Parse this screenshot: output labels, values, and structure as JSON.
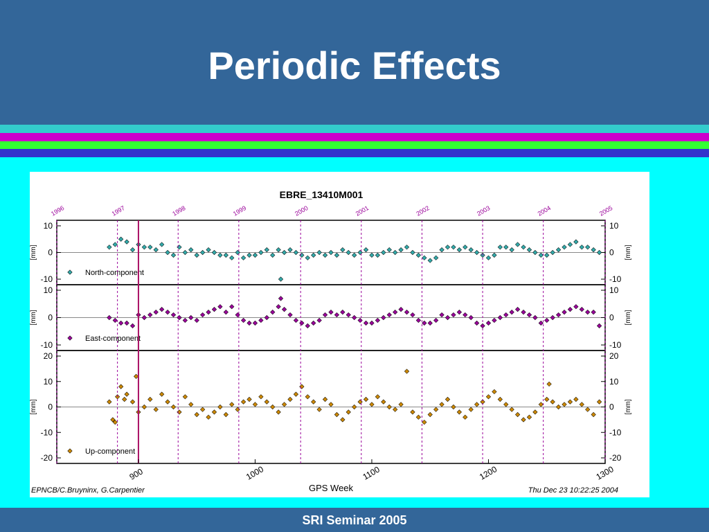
{
  "slide": {
    "title": "Periodic Effects",
    "footer": "SRI Seminar 2005",
    "colors": {
      "header": "#336699",
      "background": "#00ffff",
      "stripe_cyan": "#33cccc",
      "stripe_magenta": "#cc00cc",
      "stripe_green": "#33ff33",
      "stripe_blue": "#3333cc"
    }
  },
  "chart_data": {
    "type": "scatter",
    "title": "EBRE_13410M001",
    "xlabel": "GPS Week",
    "credit": "EPNCB/C.Bruyninx, G.Carpentier",
    "timestamp": "Thu Dec 23 10:22:25 2004",
    "xlim": [
      830,
      1300
    ],
    "x_ticks": [
      "900",
      "1000",
      "1100",
      "1200",
      "1300"
    ],
    "year_labels": [
      {
        "label": "1996",
        "week": 830
      },
      {
        "label": "1997",
        "week": 882
      },
      {
        "label": "1998",
        "week": 934
      },
      {
        "label": "1999",
        "week": 986
      },
      {
        "label": "2000",
        "week": 1039
      },
      {
        "label": "2001",
        "week": 1091
      },
      {
        "label": "2002",
        "week": 1143
      },
      {
        "label": "2003",
        "week": 1195
      },
      {
        "label": "2004",
        "week": 1247
      },
      {
        "label": "2005",
        "week": 1300
      }
    ],
    "event_line_week": 900,
    "panels": [
      {
        "name": "North-component",
        "ylabel": "[mm]",
        "ylim": [
          -10,
          10
        ],
        "y_ticks": [
          "10",
          "0",
          "-10"
        ],
        "color": "#33aaaa",
        "points": [
          [
            875,
            2
          ],
          [
            880,
            3
          ],
          [
            885,
            5
          ],
          [
            890,
            4
          ],
          [
            895,
            1
          ],
          [
            900,
            3
          ],
          [
            905,
            2
          ],
          [
            910,
            2
          ],
          [
            915,
            1
          ],
          [
            920,
            3
          ],
          [
            925,
            0
          ],
          [
            930,
            -1
          ],
          [
            935,
            2
          ],
          [
            940,
            0
          ],
          [
            945,
            1
          ],
          [
            950,
            -1
          ],
          [
            955,
            0
          ],
          [
            960,
            1
          ],
          [
            965,
            0
          ],
          [
            970,
            -1
          ],
          [
            975,
            -1
          ],
          [
            980,
            -2
          ],
          [
            985,
            0
          ],
          [
            990,
            -2
          ],
          [
            995,
            -1
          ],
          [
            1000,
            -1
          ],
          [
            1005,
            0
          ],
          [
            1010,
            1
          ],
          [
            1015,
            -1
          ],
          [
            1020,
            1
          ],
          [
            1025,
            0
          ],
          [
            1030,
            1
          ],
          [
            1035,
            0
          ],
          [
            1040,
            -1
          ],
          [
            1045,
            -2
          ],
          [
            1050,
            -1
          ],
          [
            1055,
            0
          ],
          [
            1060,
            -1
          ],
          [
            1065,
            0
          ],
          [
            1070,
            -1
          ],
          [
            1075,
            1
          ],
          [
            1080,
            0
          ],
          [
            1085,
            -1
          ],
          [
            1090,
            0
          ],
          [
            1095,
            1
          ],
          [
            1100,
            -1
          ],
          [
            1105,
            -1
          ],
          [
            1110,
            0
          ],
          [
            1115,
            1
          ],
          [
            1120,
            0
          ],
          [
            1125,
            1
          ],
          [
            1130,
            2
          ],
          [
            1135,
            0
          ],
          [
            1140,
            -1
          ],
          [
            1145,
            -2
          ],
          [
            1150,
            -3
          ],
          [
            1155,
            -2
          ],
          [
            1160,
            1
          ],
          [
            1165,
            2
          ],
          [
            1170,
            2
          ],
          [
            1175,
            1
          ],
          [
            1180,
            2
          ],
          [
            1185,
            1
          ],
          [
            1190,
            0
          ],
          [
            1195,
            -1
          ],
          [
            1200,
            -2
          ],
          [
            1205,
            -1
          ],
          [
            1210,
            2
          ],
          [
            1215,
            2
          ],
          [
            1220,
            1
          ],
          [
            1225,
            3
          ],
          [
            1230,
            2
          ],
          [
            1235,
            1
          ],
          [
            1240,
            0
          ],
          [
            1245,
            -1
          ],
          [
            1250,
            -1
          ],
          [
            1255,
            0
          ],
          [
            1260,
            1
          ],
          [
            1265,
            2
          ],
          [
            1270,
            3
          ],
          [
            1275,
            4
          ],
          [
            1280,
            2
          ],
          [
            1285,
            2
          ],
          [
            1290,
            1
          ],
          [
            1295,
            0
          ],
          [
            1022,
            -10
          ]
        ]
      },
      {
        "name": "East-component",
        "ylabel": "[mm]",
        "ylim": [
          -10,
          10
        ],
        "y_ticks": [
          "10",
          "0",
          "-10"
        ],
        "color": "#990099",
        "points": [
          [
            875,
            0
          ],
          [
            880,
            -1
          ],
          [
            885,
            -2
          ],
          [
            890,
            -2
          ],
          [
            895,
            -3
          ],
          [
            900,
            1
          ],
          [
            905,
            0
          ],
          [
            910,
            1
          ],
          [
            915,
            2
          ],
          [
            920,
            3
          ],
          [
            925,
            2
          ],
          [
            930,
            1
          ],
          [
            935,
            0
          ],
          [
            940,
            -1
          ],
          [
            945,
            0
          ],
          [
            950,
            -1
          ],
          [
            955,
            1
          ],
          [
            960,
            2
          ],
          [
            965,
            3
          ],
          [
            970,
            4
          ],
          [
            975,
            2
          ],
          [
            980,
            4
          ],
          [
            985,
            1
          ],
          [
            990,
            -1
          ],
          [
            995,
            -2
          ],
          [
            1000,
            -2
          ],
          [
            1005,
            -1
          ],
          [
            1010,
            0
          ],
          [
            1015,
            2
          ],
          [
            1020,
            4
          ],
          [
            1025,
            3
          ],
          [
            1030,
            1
          ],
          [
            1035,
            -1
          ],
          [
            1040,
            -2
          ],
          [
            1045,
            -3
          ],
          [
            1050,
            -2
          ],
          [
            1055,
            -1
          ],
          [
            1060,
            1
          ],
          [
            1065,
            2
          ],
          [
            1070,
            1
          ],
          [
            1075,
            2
          ],
          [
            1080,
            1
          ],
          [
            1085,
            0
          ],
          [
            1090,
            -1
          ],
          [
            1095,
            -2
          ],
          [
            1100,
            -2
          ],
          [
            1105,
            -1
          ],
          [
            1110,
            0
          ],
          [
            1115,
            1
          ],
          [
            1120,
            2
          ],
          [
            1125,
            3
          ],
          [
            1130,
            2
          ],
          [
            1135,
            1
          ],
          [
            1140,
            -1
          ],
          [
            1145,
            -2
          ],
          [
            1150,
            -2
          ],
          [
            1155,
            -1
          ],
          [
            1160,
            1
          ],
          [
            1165,
            0
          ],
          [
            1170,
            1
          ],
          [
            1175,
            2
          ],
          [
            1180,
            1
          ],
          [
            1185,
            0
          ],
          [
            1190,
            -2
          ],
          [
            1195,
            -3
          ],
          [
            1200,
            -2
          ],
          [
            1205,
            -1
          ],
          [
            1210,
            0
          ],
          [
            1215,
            1
          ],
          [
            1220,
            2
          ],
          [
            1225,
            3
          ],
          [
            1230,
            2
          ],
          [
            1235,
            1
          ],
          [
            1240,
            0
          ],
          [
            1245,
            -2
          ],
          [
            1250,
            -1
          ],
          [
            1255,
            0
          ],
          [
            1260,
            1
          ],
          [
            1265,
            2
          ],
          [
            1270,
            3
          ],
          [
            1275,
            4
          ],
          [
            1280,
            3
          ],
          [
            1285,
            2
          ],
          [
            1290,
            2
          ],
          [
            1295,
            -3
          ],
          [
            1022,
            7
          ]
        ]
      },
      {
        "name": "Up-component",
        "ylabel": "[mm]",
        "ylim": [
          -20,
          20
        ],
        "y_ticks": [
          "20",
          "10",
          "0",
          "-10",
          "-20"
        ],
        "color": "#cc8800",
        "points": [
          [
            875,
            2
          ],
          [
            878,
            -5
          ],
          [
            880,
            -6
          ],
          [
            882,
            4
          ],
          [
            885,
            8
          ],
          [
            888,
            3
          ],
          [
            890,
            5
          ],
          [
            895,
            2
          ],
          [
            898,
            12
          ],
          [
            900,
            -2
          ],
          [
            905,
            0
          ],
          [
            910,
            3
          ],
          [
            915,
            -1
          ],
          [
            920,
            5
          ],
          [
            925,
            2
          ],
          [
            930,
            0
          ],
          [
            935,
            -2
          ],
          [
            940,
            4
          ],
          [
            945,
            1
          ],
          [
            950,
            -3
          ],
          [
            955,
            -1
          ],
          [
            960,
            -4
          ],
          [
            965,
            -2
          ],
          [
            970,
            0
          ],
          [
            975,
            -3
          ],
          [
            980,
            1
          ],
          [
            985,
            -1
          ],
          [
            990,
            2
          ],
          [
            995,
            3
          ],
          [
            1000,
            1
          ],
          [
            1005,
            4
          ],
          [
            1010,
            2
          ],
          [
            1015,
            0
          ],
          [
            1020,
            -2
          ],
          [
            1025,
            1
          ],
          [
            1030,
            3
          ],
          [
            1035,
            5
          ],
          [
            1040,
            8
          ],
          [
            1045,
            4
          ],
          [
            1050,
            2
          ],
          [
            1055,
            -1
          ],
          [
            1060,
            3
          ],
          [
            1065,
            1
          ],
          [
            1070,
            -3
          ],
          [
            1075,
            -5
          ],
          [
            1080,
            -2
          ],
          [
            1085,
            0
          ],
          [
            1090,
            2
          ],
          [
            1095,
            3
          ],
          [
            1100,
            1
          ],
          [
            1105,
            4
          ],
          [
            1110,
            2
          ],
          [
            1115,
            0
          ],
          [
            1120,
            -1
          ],
          [
            1125,
            1
          ],
          [
            1130,
            14
          ],
          [
            1135,
            -2
          ],
          [
            1140,
            -4
          ],
          [
            1145,
            -6
          ],
          [
            1150,
            -3
          ],
          [
            1155,
            -1
          ],
          [
            1160,
            1
          ],
          [
            1165,
            3
          ],
          [
            1170,
            0
          ],
          [
            1175,
            -2
          ],
          [
            1180,
            -4
          ],
          [
            1185,
            -1
          ],
          [
            1190,
            1
          ],
          [
            1195,
            2
          ],
          [
            1200,
            4
          ],
          [
            1205,
            6
          ],
          [
            1210,
            3
          ],
          [
            1215,
            1
          ],
          [
            1220,
            -1
          ],
          [
            1225,
            -3
          ],
          [
            1230,
            -5
          ],
          [
            1235,
            -4
          ],
          [
            1240,
            -2
          ],
          [
            1245,
            1
          ],
          [
            1250,
            3
          ],
          [
            1255,
            2
          ],
          [
            1260,
            0
          ],
          [
            1265,
            1
          ],
          [
            1270,
            2
          ],
          [
            1275,
            3
          ],
          [
            1280,
            1
          ],
          [
            1285,
            -1
          ],
          [
            1290,
            -3
          ],
          [
            1295,
            2
          ],
          [
            1252,
            9
          ]
        ]
      }
    ]
  }
}
